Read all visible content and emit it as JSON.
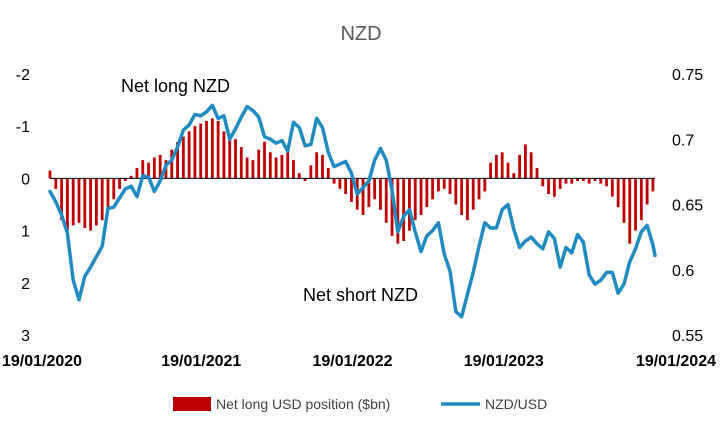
{
  "chart_data": {
    "type": "bar+line",
    "title": "NZD",
    "x_tick_labels": [
      "19/01/2020",
      "19/01/2021",
      "19/01/2022",
      "19/01/2023",
      "19/01/2024"
    ],
    "x_range": [
      "2020-01-19",
      "2024-01-19"
    ],
    "left_axis": {
      "ticks": [
        -2,
        -1,
        0,
        1,
        2,
        3
      ],
      "tick_labels": [
        "-2",
        "-1",
        "0",
        "1",
        "2",
        "3"
      ],
      "range": [
        -2,
        3
      ],
      "inverted": true
    },
    "right_axis": {
      "ticks": [
        0.75,
        0.7,
        0.65,
        0.6,
        0.55
      ],
      "tick_labels": [
        "0.75",
        "0.7",
        "0.65",
        "0.6",
        "0.55"
      ],
      "range": [
        0.55,
        0.75
      ]
    },
    "annotations": [
      "Net long NZD",
      "Net short NZD"
    ],
    "colors": {
      "bars": "#C00000",
      "line": "#1F8BC0",
      "axis": "#000000"
    },
    "legend": {
      "position": "bottom"
    },
    "series": [
      {
        "name": "Net long USD position ($bn)",
        "kind": "bar",
        "axis": "left",
        "color": "#C00000",
        "points": [
          [
            "2020-01-19",
            -0.15
          ],
          [
            "2020-02-02",
            0.2
          ],
          [
            "2020-02-16",
            0.8
          ],
          [
            "2020-03-01",
            1.0
          ],
          [
            "2020-03-15",
            0.9
          ],
          [
            "2020-03-29",
            0.85
          ],
          [
            "2020-04-12",
            0.95
          ],
          [
            "2020-04-26",
            1.0
          ],
          [
            "2020-05-10",
            0.9
          ],
          [
            "2020-05-24",
            0.8
          ],
          [
            "2020-06-07",
            0.6
          ],
          [
            "2020-06-21",
            0.4
          ],
          [
            "2020-07-05",
            0.2
          ],
          [
            "2020-07-19",
            0.05
          ],
          [
            "2020-08-02",
            -0.05
          ],
          [
            "2020-08-16",
            -0.2
          ],
          [
            "2020-08-30",
            -0.35
          ],
          [
            "2020-09-13",
            -0.3
          ],
          [
            "2020-09-27",
            -0.4
          ],
          [
            "2020-10-11",
            -0.45
          ],
          [
            "2020-10-25",
            -0.35
          ],
          [
            "2020-11-08",
            -0.55
          ],
          [
            "2020-11-22",
            -0.7
          ],
          [
            "2020-12-06",
            -0.8
          ],
          [
            "2020-12-20",
            -0.9
          ],
          [
            "2021-01-03",
            -1.0
          ],
          [
            "2021-01-17",
            -1.05
          ],
          [
            "2021-01-31",
            -1.1
          ],
          [
            "2021-02-14",
            -1.15
          ],
          [
            "2021-02-28",
            -1.1
          ],
          [
            "2021-03-14",
            -0.9
          ],
          [
            "2021-03-28",
            -0.8
          ],
          [
            "2021-04-11",
            -0.75
          ],
          [
            "2021-04-25",
            -0.6
          ],
          [
            "2021-05-09",
            -0.4
          ],
          [
            "2021-05-23",
            -0.35
          ],
          [
            "2021-06-06",
            -0.55
          ],
          [
            "2021-06-20",
            -0.7
          ],
          [
            "2021-07-04",
            -0.5
          ],
          [
            "2021-07-18",
            -0.4
          ],
          [
            "2021-08-01",
            -0.45
          ],
          [
            "2021-08-15",
            -0.5
          ],
          [
            "2021-08-29",
            -0.35
          ],
          [
            "2021-09-12",
            -0.1
          ],
          [
            "2021-09-26",
            0.05
          ],
          [
            "2021-10-10",
            -0.25
          ],
          [
            "2021-10-24",
            -0.5
          ],
          [
            "2021-11-07",
            -0.45
          ],
          [
            "2021-11-21",
            -0.2
          ],
          [
            "2021-12-05",
            0.1
          ],
          [
            "2021-12-19",
            0.2
          ],
          [
            "2022-01-02",
            0.3
          ],
          [
            "2022-01-16",
            0.45
          ],
          [
            "2022-01-30",
            0.6
          ],
          [
            "2022-02-13",
            0.7
          ],
          [
            "2022-02-27",
            0.55
          ],
          [
            "2022-03-13",
            0.4
          ],
          [
            "2022-03-27",
            0.6
          ],
          [
            "2022-04-10",
            0.85
          ],
          [
            "2022-04-24",
            1.1
          ],
          [
            "2022-05-08",
            1.25
          ],
          [
            "2022-05-22",
            1.2
          ],
          [
            "2022-06-05",
            1.0
          ],
          [
            "2022-06-19",
            0.8
          ],
          [
            "2022-07-03",
            0.7
          ],
          [
            "2022-07-17",
            0.55
          ],
          [
            "2022-07-31",
            0.4
          ],
          [
            "2022-08-14",
            0.25
          ],
          [
            "2022-08-28",
            0.2
          ],
          [
            "2022-09-11",
            0.3
          ],
          [
            "2022-09-25",
            0.5
          ],
          [
            "2022-10-09",
            0.7
          ],
          [
            "2022-10-23",
            0.8
          ],
          [
            "2022-11-06",
            0.6
          ],
          [
            "2022-11-20",
            0.4
          ],
          [
            "2022-12-04",
            0.25
          ],
          [
            "2022-12-18",
            -0.3
          ],
          [
            "2023-01-01",
            -0.45
          ],
          [
            "2023-01-15",
            -0.5
          ],
          [
            "2023-01-29",
            -0.3
          ],
          [
            "2023-02-12",
            -0.1
          ],
          [
            "2023-02-26",
            -0.45
          ],
          [
            "2023-03-12",
            -0.65
          ],
          [
            "2023-03-26",
            -0.5
          ],
          [
            "2023-04-09",
            -0.2
          ],
          [
            "2023-04-23",
            0.15
          ],
          [
            "2023-05-07",
            0.3
          ],
          [
            "2023-05-21",
            0.35
          ],
          [
            "2023-06-04",
            0.2
          ],
          [
            "2023-06-18",
            0.1
          ],
          [
            "2023-07-02",
            0.1
          ],
          [
            "2023-07-16",
            0.05
          ],
          [
            "2023-07-30",
            0.05
          ],
          [
            "2023-08-13",
            0.1
          ],
          [
            "2023-08-27",
            0.05
          ],
          [
            "2023-09-10",
            0.1
          ],
          [
            "2023-09-24",
            0.15
          ],
          [
            "2023-10-08",
            0.35
          ],
          [
            "2023-10-22",
            0.55
          ],
          [
            "2023-11-05",
            0.85
          ],
          [
            "2023-11-19",
            1.25
          ],
          [
            "2023-12-03",
            1.0
          ],
          [
            "2023-12-17",
            0.8
          ],
          [
            "2023-12-31",
            0.5
          ],
          [
            "2024-01-14",
            0.25
          ]
        ]
      },
      {
        "name": "NZD/USD",
        "kind": "line",
        "axis": "right",
        "color": "#1F8BC0",
        "points": [
          [
            "2020-01-19",
            0.66
          ],
          [
            "2020-02-02",
            0.652
          ],
          [
            "2020-02-16",
            0.642
          ],
          [
            "2020-03-01",
            0.628
          ],
          [
            "2020-03-15",
            0.592
          ],
          [
            "2020-03-29",
            0.577
          ],
          [
            "2020-04-12",
            0.595
          ],
          [
            "2020-04-26",
            0.602
          ],
          [
            "2020-05-10",
            0.61
          ],
          [
            "2020-05-24",
            0.618
          ],
          [
            "2020-06-07",
            0.647
          ],
          [
            "2020-06-21",
            0.648
          ],
          [
            "2020-07-05",
            0.655
          ],
          [
            "2020-07-19",
            0.662
          ],
          [
            "2020-08-02",
            0.664
          ],
          [
            "2020-08-16",
            0.656
          ],
          [
            "2020-08-30",
            0.672
          ],
          [
            "2020-09-13",
            0.671
          ],
          [
            "2020-09-27",
            0.66
          ],
          [
            "2020-10-11",
            0.668
          ],
          [
            "2020-10-25",
            0.68
          ],
          [
            "2020-11-08",
            0.684
          ],
          [
            "2020-11-22",
            0.694
          ],
          [
            "2020-12-06",
            0.707
          ],
          [
            "2020-12-20",
            0.711
          ],
          [
            "2021-01-03",
            0.719
          ],
          [
            "2021-01-17",
            0.718
          ],
          [
            "2021-01-31",
            0.721
          ],
          [
            "2021-02-14",
            0.726
          ],
          [
            "2021-02-28",
            0.716
          ],
          [
            "2021-03-14",
            0.718
          ],
          [
            "2021-03-28",
            0.7
          ],
          [
            "2021-04-11",
            0.708
          ],
          [
            "2021-04-25",
            0.717
          ],
          [
            "2021-05-09",
            0.725
          ],
          [
            "2021-05-23",
            0.722
          ],
          [
            "2021-06-06",
            0.717
          ],
          [
            "2021-06-20",
            0.702
          ],
          [
            "2021-07-04",
            0.7
          ],
          [
            "2021-07-18",
            0.697
          ],
          [
            "2021-08-01",
            0.699
          ],
          [
            "2021-08-15",
            0.691
          ],
          [
            "2021-08-29",
            0.713
          ],
          [
            "2021-09-12",
            0.709
          ],
          [
            "2021-09-26",
            0.695
          ],
          [
            "2021-10-10",
            0.696
          ],
          [
            "2021-10-24",
            0.716
          ],
          [
            "2021-11-07",
            0.709
          ],
          [
            "2021-11-21",
            0.69
          ],
          [
            "2021-12-05",
            0.679
          ],
          [
            "2021-12-19",
            0.681
          ],
          [
            "2022-01-02",
            0.683
          ],
          [
            "2022-01-16",
            0.674
          ],
          [
            "2022-01-30",
            0.658
          ],
          [
            "2022-02-13",
            0.663
          ],
          [
            "2022-02-27",
            0.668
          ],
          [
            "2022-03-13",
            0.684
          ],
          [
            "2022-03-27",
            0.693
          ],
          [
            "2022-04-10",
            0.684
          ],
          [
            "2022-04-24",
            0.661
          ],
          [
            "2022-05-08",
            0.629
          ],
          [
            "2022-05-22",
            0.641
          ],
          [
            "2022-06-05",
            0.646
          ],
          [
            "2022-06-19",
            0.629
          ],
          [
            "2022-07-03",
            0.614
          ],
          [
            "2022-07-17",
            0.626
          ],
          [
            "2022-07-31",
            0.63
          ],
          [
            "2022-08-14",
            0.636
          ],
          [
            "2022-08-28",
            0.612
          ],
          [
            "2022-09-11",
            0.599
          ],
          [
            "2022-09-25",
            0.568
          ],
          [
            "2022-10-09",
            0.564
          ],
          [
            "2022-10-23",
            0.581
          ],
          [
            "2022-11-06",
            0.598
          ],
          [
            "2022-11-20",
            0.618
          ],
          [
            "2022-12-04",
            0.636
          ],
          [
            "2022-12-18",
            0.632
          ],
          [
            "2023-01-01",
            0.632
          ],
          [
            "2023-01-15",
            0.646
          ],
          [
            "2023-01-29",
            0.65
          ],
          [
            "2023-02-12",
            0.631
          ],
          [
            "2023-02-26",
            0.617
          ],
          [
            "2023-03-12",
            0.622
          ],
          [
            "2023-03-26",
            0.625
          ],
          [
            "2023-04-09",
            0.62
          ],
          [
            "2023-04-23",
            0.616
          ],
          [
            "2023-05-07",
            0.629
          ],
          [
            "2023-05-21",
            0.624
          ],
          [
            "2023-06-04",
            0.602
          ],
          [
            "2023-06-18",
            0.617
          ],
          [
            "2023-07-02",
            0.613
          ],
          [
            "2023-07-16",
            0.627
          ],
          [
            "2023-07-30",
            0.621
          ],
          [
            "2023-08-13",
            0.596
          ],
          [
            "2023-08-27",
            0.589
          ],
          [
            "2023-09-10",
            0.592
          ],
          [
            "2023-09-24",
            0.598
          ],
          [
            "2023-10-08",
            0.598
          ],
          [
            "2023-10-22",
            0.582
          ],
          [
            "2023-11-05",
            0.589
          ],
          [
            "2023-11-19",
            0.606
          ],
          [
            "2023-12-03",
            0.616
          ],
          [
            "2023-12-17",
            0.629
          ],
          [
            "2023-12-31",
            0.634
          ],
          [
            "2024-01-14",
            0.619
          ],
          [
            "2024-01-19",
            0.611
          ]
        ]
      }
    ]
  }
}
